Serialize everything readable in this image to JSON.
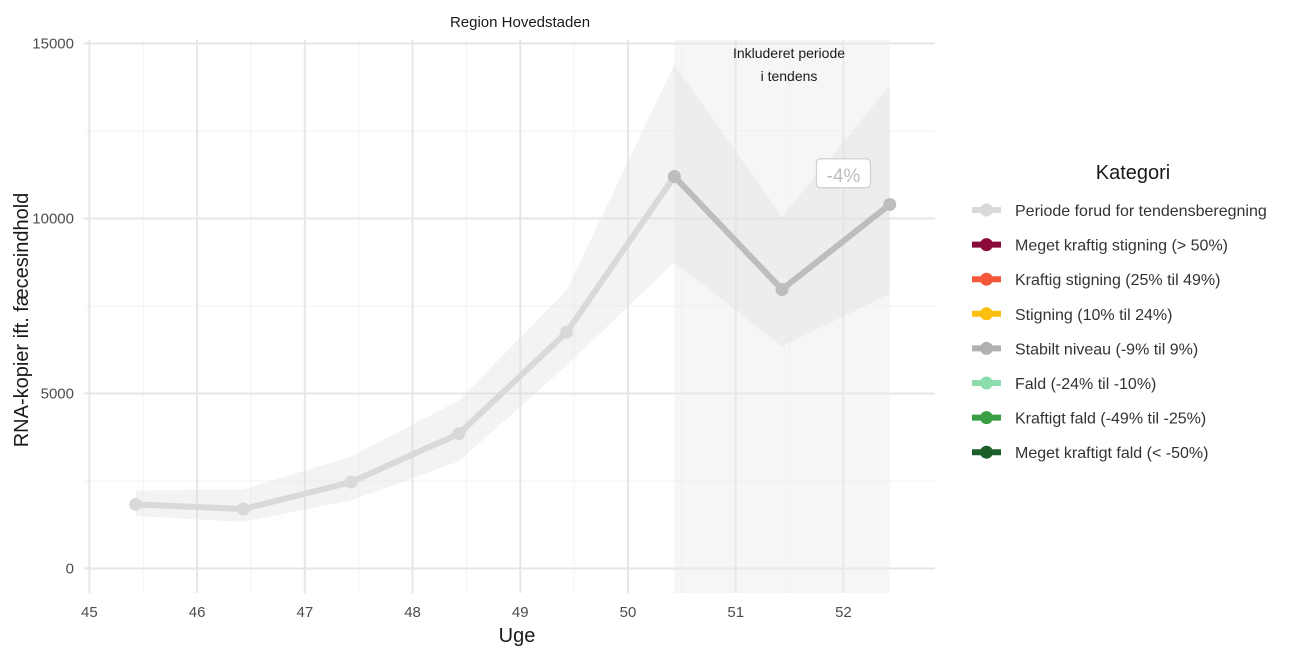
{
  "chart_data": {
    "type": "line",
    "title": "Region Hovedstaden",
    "xlabel": "Uge",
    "ylabel": "RNA-kopier ift. fæcesindhold",
    "xlim": [
      44.95,
      52.85
    ],
    "ylim": [
      -700,
      15100
    ],
    "x_ticks": [
      45,
      46,
      47,
      48,
      49,
      50,
      51,
      52
    ],
    "y_ticks": [
      0,
      5000,
      10000,
      15000
    ],
    "grid": true,
    "series": [
      {
        "category": "Periode forud for tendensberegning",
        "color": "#d9d9d9",
        "x": [
          45.43,
          46.43,
          47.43,
          48.43,
          49.43,
          50.43
        ],
        "y": [
          1830,
          1700,
          2470,
          3850,
          6750,
          11200
        ],
        "ci_lower": [
          1500,
          1330,
          1950,
          3060,
          5800,
          8750
        ],
        "ci_upper": [
          2230,
          2260,
          3200,
          4800,
          7950,
          14400
        ]
      },
      {
        "category": "Stabilt niveau (-9% til 9%)",
        "color": "#bdbdbd",
        "x": [
          50.43,
          51.43,
          52.43
        ],
        "y": [
          11200,
          7970,
          10400
        ],
        "ci_lower": [
          8750,
          6350,
          7850
        ],
        "ci_upper": [
          14400,
          10050,
          13800
        ]
      }
    ],
    "highlight_region": {
      "x": [
        50.43,
        52.43
      ],
      "label": "Inkluderet periode i tendens"
    },
    "percent_label": {
      "text": "-4%",
      "x": 52.0,
      "y": 11250
    },
    "legend": {
      "title": "Kategori",
      "position": "right",
      "items": [
        {
          "label": "Periode forud for tendensberegning",
          "color": "#d9d9d9"
        },
        {
          "label": "Meget kraftig stigning (> 50%)",
          "color": "#8b0a3c"
        },
        {
          "label": "Kraftig stigning (25% til 49%)",
          "color": "#f4573a"
        },
        {
          "label": "Stigning (10% til 24%)",
          "color": "#fcbe0f"
        },
        {
          "label": "Stabilt niveau (-9% til 9%)",
          "color": "#b0b0b0"
        },
        {
          "label": "Fald (-24% til -10%)",
          "color": "#8ddcad"
        },
        {
          "label": "Kraftigt fald (-49% til -25%)",
          "color": "#3a9e45"
        },
        {
          "label": "Meget kraftigt fald (< -50%)",
          "color": "#1b5e2a"
        }
      ]
    }
  },
  "annotation": {
    "line1": "Inkluderet periode",
    "line2": "i tendens"
  }
}
